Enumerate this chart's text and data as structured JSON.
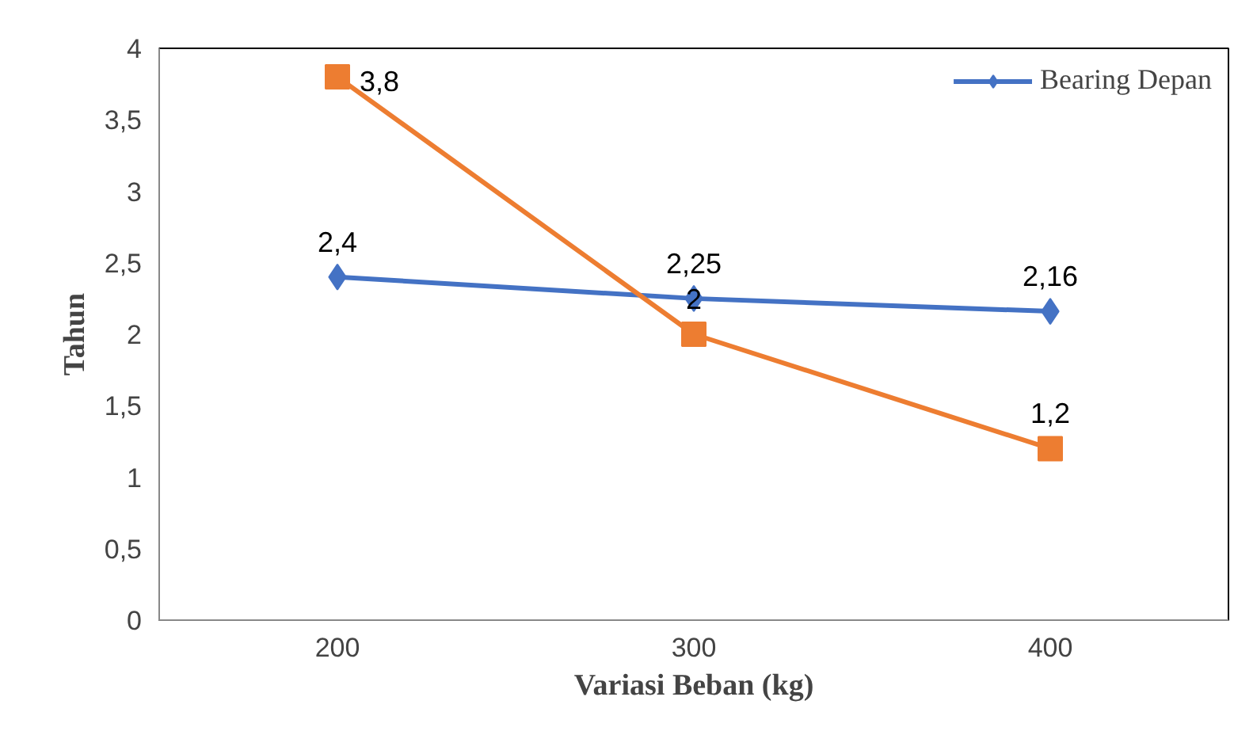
{
  "chart_data": {
    "type": "line",
    "xlabel": "Variasi Beban (kg)",
    "ylabel": "Tahun",
    "categories": [
      "200",
      "300",
      "400"
    ],
    "series": [
      {
        "name": "Bearing Depan",
        "color": "#4472c4",
        "marker": "diamond",
        "values": [
          2.4,
          2.25,
          2.16
        ],
        "value_labels": [
          "2,4",
          "2,25",
          "2,16"
        ]
      },
      {
        "color": "#ed7d31",
        "marker": "square",
        "values": [
          3.8,
          2,
          1.2
        ],
        "value_labels": [
          "3,8",
          "2",
          "1,2"
        ]
      }
    ],
    "ylim": [
      0,
      4
    ],
    "yticks": [
      0,
      {
        "value": 0.5,
        "label": "0,5"
      },
      1,
      {
        "value": 1.5,
        "label": "1,5"
      },
      2,
      {
        "value": 2.5,
        "label": "2,5"
      },
      3,
      {
        "value": 3.5,
        "label": "3,5"
      },
      4
    ],
    "grid": false,
    "legend": "top right"
  }
}
